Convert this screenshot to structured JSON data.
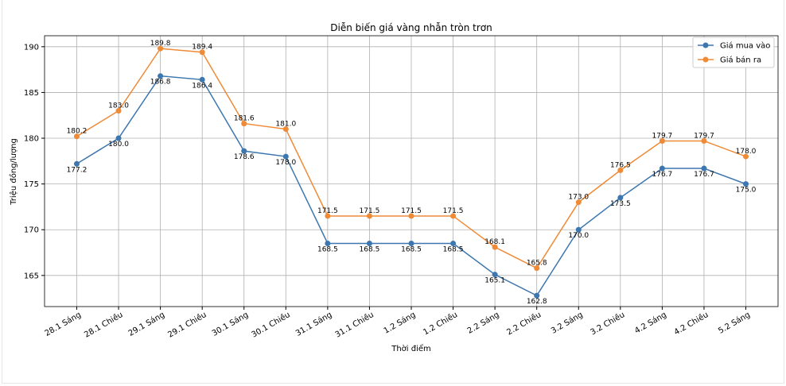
{
  "chart_data": {
    "type": "line",
    "title": "Diễn biến giá vàng nhẫn tròn trơn",
    "xlabel": "Thời điểm",
    "ylabel": "Triệu đồng/lượng",
    "categories": [
      "28.1 Sáng",
      "28.1 Chiều",
      "29.1 Sáng",
      "29.1 Chiều",
      "30.1 Sáng",
      "30.1 Chiều",
      "31.1 Sáng",
      "31.1 Chiều",
      "1.2 Sáng",
      "1.2 Chiều",
      "2.2 Sáng",
      "2.2 Chiều",
      "3.2 Sáng",
      "3.2 Chiều",
      "4.2 Sáng",
      "4.2 Chiều",
      "5.2 Sáng"
    ],
    "series": [
      {
        "name": "Giá mua vào",
        "color": "#3d77b0",
        "label_position": "below",
        "values": [
          177.2,
          180.0,
          186.8,
          186.4,
          178.6,
          178.0,
          168.5,
          168.5,
          168.5,
          168.5,
          165.1,
          162.8,
          170.0,
          173.5,
          176.7,
          176.7,
          175.0
        ]
      },
      {
        "name": "Giá bán ra",
        "color": "#ef8a36",
        "label_position": "above",
        "values": [
          180.2,
          183.0,
          189.8,
          189.4,
          181.6,
          181.0,
          171.5,
          171.5,
          171.5,
          171.5,
          168.1,
          165.8,
          173.0,
          176.5,
          179.7,
          179.7,
          178.0
        ]
      }
    ],
    "yticks": [
      165,
      170,
      175,
      180,
      185,
      190
    ],
    "ylim": [
      161.6,
      191.2
    ],
    "grid": true,
    "legend_position": "top-right"
  }
}
